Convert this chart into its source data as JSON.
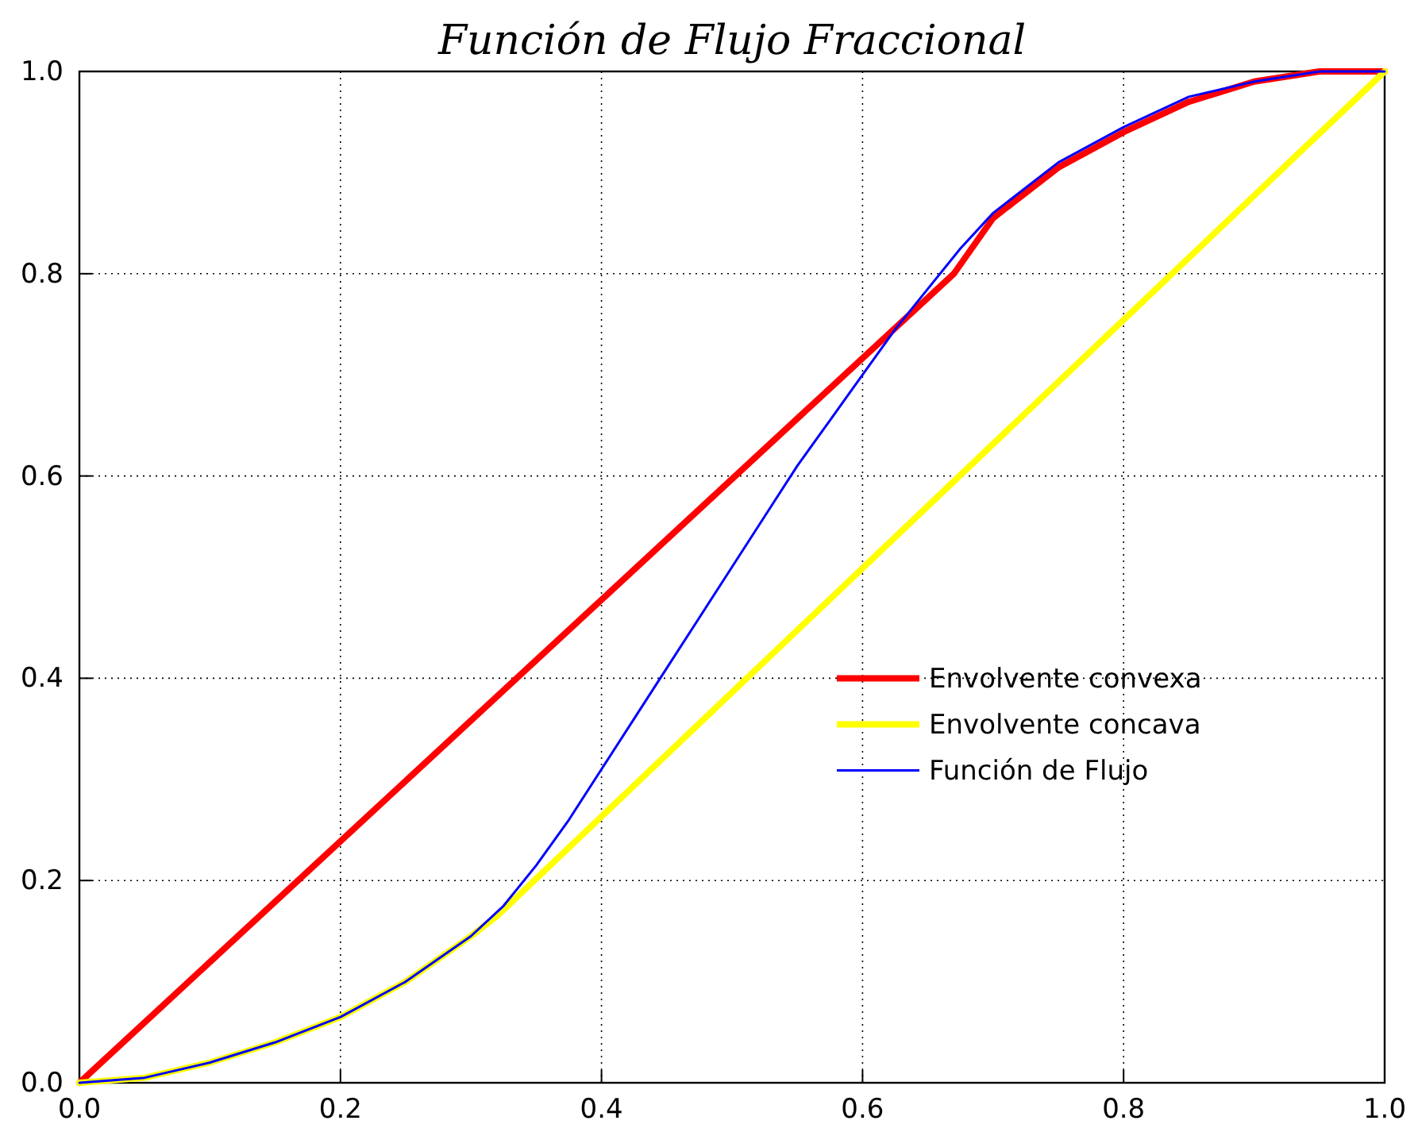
{
  "chart_data": {
    "type": "line",
    "title": "Función de Flujo Fraccional",
    "xlim": [
      0,
      1
    ],
    "ylim": [
      0,
      1
    ],
    "xticks": [
      {
        "value": 0,
        "label": "0.0"
      },
      {
        "value": 0.2,
        "label": "0.2"
      },
      {
        "value": 0.4,
        "label": "0.4"
      },
      {
        "value": 0.6,
        "label": "0.6"
      },
      {
        "value": 0.8,
        "label": "0.8"
      },
      {
        "value": 1,
        "label": "1.0"
      }
    ],
    "yticks": [
      {
        "value": 0,
        "label": "0.0"
      },
      {
        "value": 0.2,
        "label": "0.2"
      },
      {
        "value": 0.4,
        "label": "0.4"
      },
      {
        "value": 0.6,
        "label": "0.6"
      },
      {
        "value": 0.8,
        "label": "0.8"
      },
      {
        "value": 1,
        "label": "1.0"
      }
    ],
    "grid": true,
    "legend": "right",
    "series": [
      {
        "name": "Envolvente convexa",
        "color": "#ff0000",
        "x": [
          0,
          0.67,
          0.7,
          0.75,
          0.8,
          0.85,
          0.9,
          0.95,
          1
        ],
        "values": [
          0,
          0.8,
          0.855,
          0.905,
          0.94,
          0.97,
          0.99,
          1,
          1
        ]
      },
      {
        "name": "Envolvente concava",
        "color": "#ffff00",
        "x": [
          0,
          0.05,
          0.1,
          0.15,
          0.2,
          0.25,
          0.3,
          0.32,
          1
        ],
        "values": [
          0,
          0.005,
          0.02,
          0.04,
          0.065,
          0.1,
          0.145,
          0.165,
          1
        ]
      },
      {
        "name": "Función de Flujo",
        "color": "#0000ff",
        "x": [
          0,
          0.05,
          0.1,
          0.15,
          0.2,
          0.25,
          0.3,
          0.325,
          0.35,
          0.375,
          0.4,
          0.425,
          0.45,
          0.475,
          0.5,
          0.525,
          0.55,
          0.575,
          0.6,
          0.625,
          0.65,
          0.675,
          0.7,
          0.75,
          0.8,
          0.85,
          0.9,
          0.95,
          1
        ],
        "values": [
          0,
          0.005,
          0.02,
          0.04,
          0.065,
          0.1,
          0.145,
          0.175,
          0.215,
          0.26,
          0.31,
          0.36,
          0.41,
          0.46,
          0.51,
          0.56,
          0.61,
          0.655,
          0.7,
          0.745,
          0.785,
          0.825,
          0.86,
          0.91,
          0.945,
          0.975,
          0.99,
          1,
          1
        ]
      }
    ]
  }
}
